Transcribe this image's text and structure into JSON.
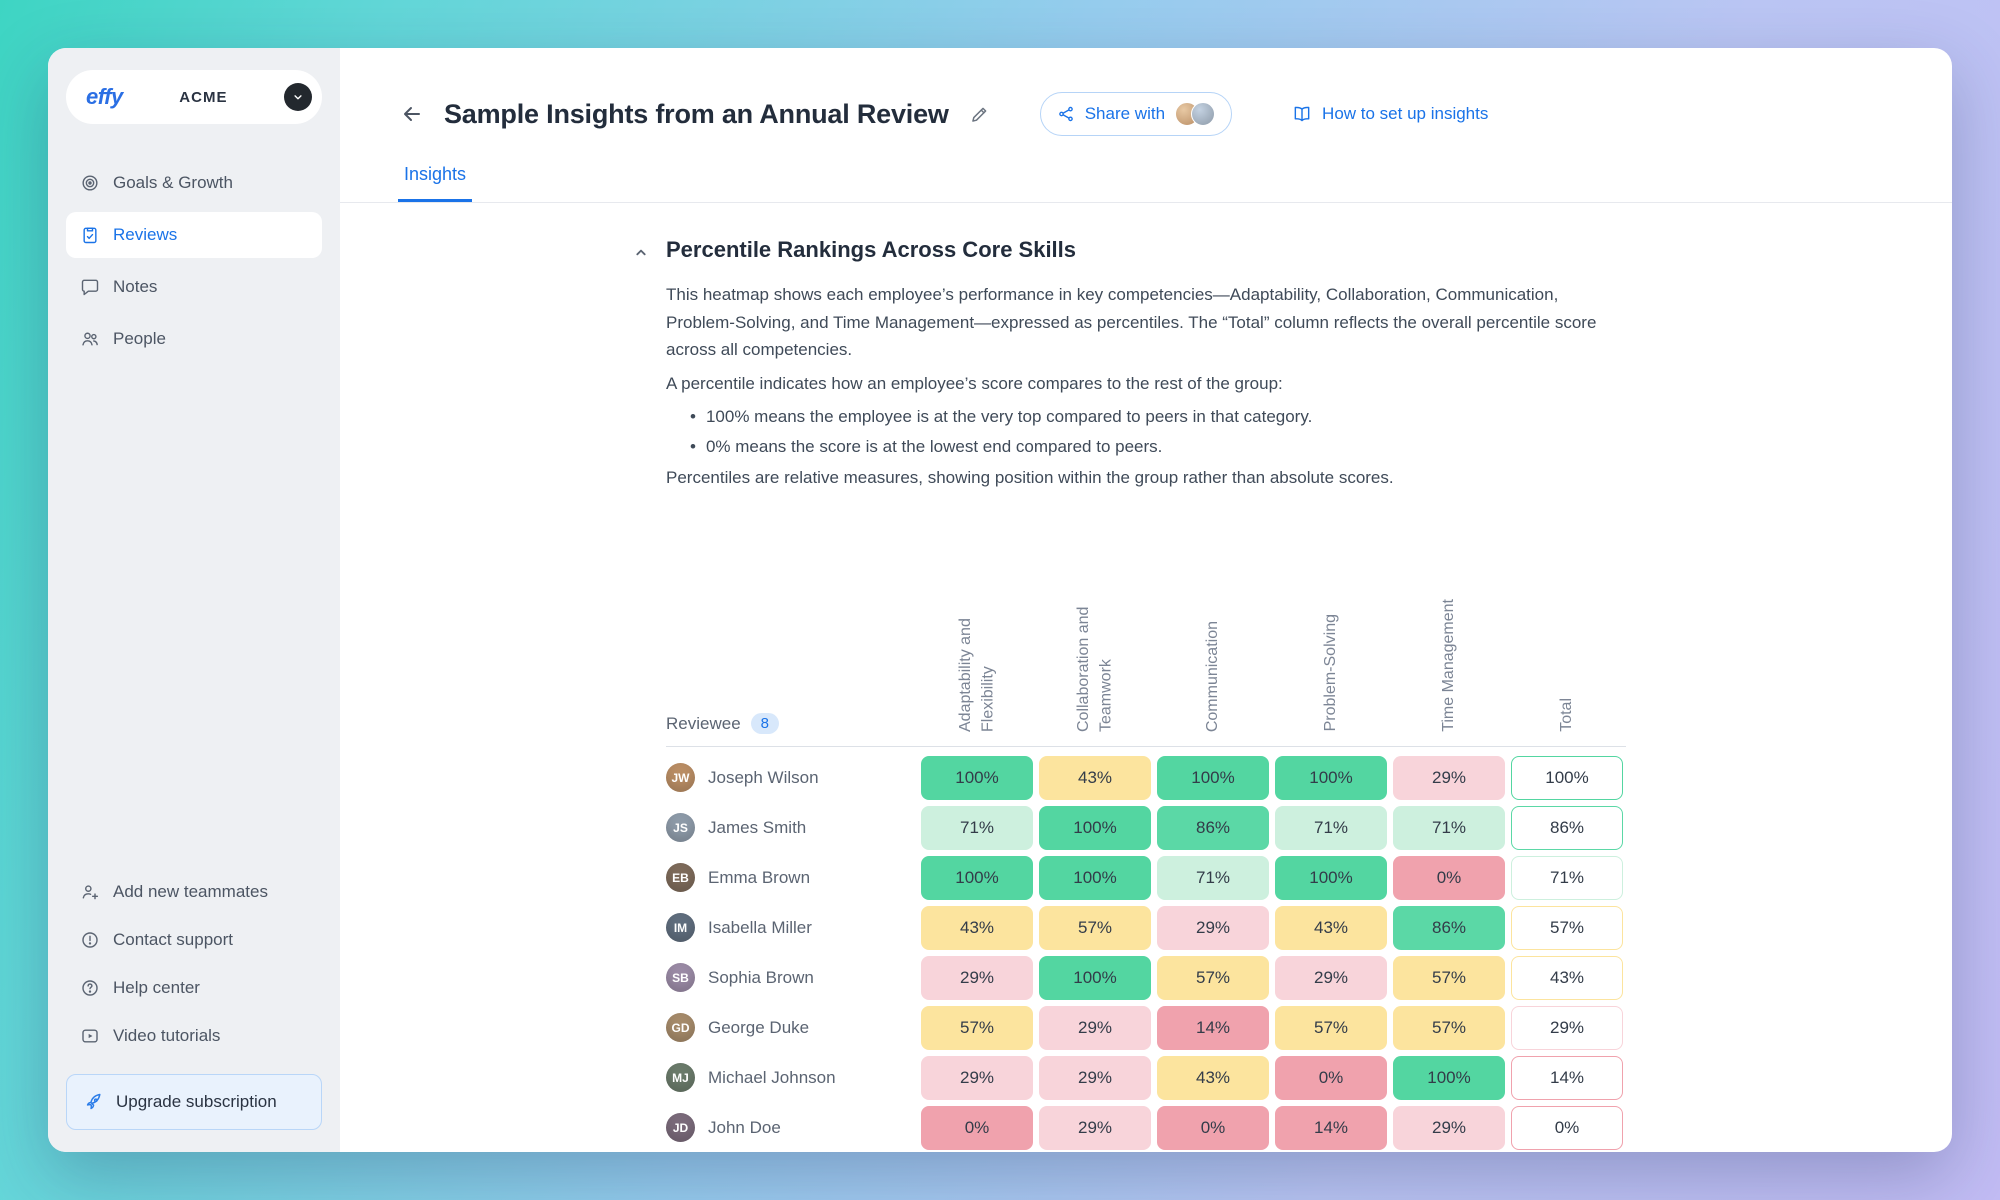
{
  "app": {
    "logo": "effy",
    "workspace": "ACME"
  },
  "sidebar": {
    "items": [
      {
        "label": "Goals & Growth",
        "icon": "target-icon"
      },
      {
        "label": "Reviews",
        "icon": "clipboard-check-icon",
        "active": true
      },
      {
        "label": "Notes",
        "icon": "chat-bubble-icon"
      },
      {
        "label": "People",
        "icon": "people-icon"
      }
    ],
    "footer_items": [
      {
        "label": "Add new teammates",
        "icon": "add-user-icon"
      },
      {
        "label": "Contact support",
        "icon": "alert-circle-icon"
      },
      {
        "label": "Help center",
        "icon": "question-circle-icon"
      },
      {
        "label": "Video tutorials",
        "icon": "video-play-icon"
      }
    ],
    "upgrade_label": "Upgrade subscription"
  },
  "header": {
    "title": "Sample Insights from an Annual Review",
    "share_label": "Share with",
    "setup_link": "How to set up insights"
  },
  "tabs": {
    "insights": "Insights"
  },
  "section": {
    "heading": "Percentile Rankings Across Core Skills",
    "intro": "This heatmap shows each employee’s performance in key competencies—Adaptability, Collaboration, Communication, Problem-Solving, and Time Management—expressed as percentiles. The “Total” column reflects the overall percentile score across all competencies.",
    "explain": "A percentile indicates how an employee’s score compares to the rest of the group:",
    "bullets": [
      "100% means the employee is at the very top compared to peers in that category.",
      "0% means the score is at the lowest end compared to peers."
    ],
    "outro": "Percentiles are relative measures, showing position within the group rather than absolute scores."
  },
  "chart_data": {
    "type": "heatmap",
    "row_header": "Reviewee",
    "row_count": "8",
    "columns": [
      "Adaptability and Flexibility",
      "Collaboration and Teamwork",
      "Communication",
      "Problem-Solving",
      "Time Management",
      "Total"
    ],
    "rows": [
      {
        "name": "Joseph Wilson",
        "values": [
          100,
          43,
          100,
          100,
          29,
          100
        ],
        "avatar_color": "#b98d64"
      },
      {
        "name": "James Smith",
        "values": [
          71,
          100,
          86,
          71,
          71,
          86
        ],
        "avatar_color": "#8d9aa8"
      },
      {
        "name": "Emma Brown",
        "values": [
          100,
          100,
          71,
          100,
          0,
          71
        ],
        "avatar_color": "#7d6a5a"
      },
      {
        "name": "Isabella Miller",
        "values": [
          43,
          57,
          29,
          43,
          86,
          57
        ],
        "avatar_color": "#5f6d7d"
      },
      {
        "name": "Sophia Brown",
        "values": [
          29,
          100,
          57,
          29,
          57,
          43
        ],
        "avatar_color": "#9a8aa5"
      },
      {
        "name": "George Duke",
        "values": [
          57,
          29,
          14,
          57,
          57,
          29
        ],
        "avatar_color": "#a58a6a"
      },
      {
        "name": "Michael Johnson",
        "values": [
          29,
          29,
          43,
          0,
          100,
          14
        ],
        "avatar_color": "#6a7a6a"
      },
      {
        "name": "John Doe",
        "values": [
          0,
          29,
          0,
          14,
          29,
          0
        ],
        "avatar_color": "#7a6a7a"
      }
    ],
    "palette": {
      "0": "#f0a2ad",
      "14": "#f0a2ad",
      "29": "#f8d4da",
      "43": "#fce49e",
      "57": "#fce49e",
      "71": "#cdf0de",
      "86": "#5bd8a6",
      "100": "#53d6a1"
    }
  },
  "colors": {
    "accent_blue": "#1a73e8",
    "active_nav": "#1a73e8"
  }
}
